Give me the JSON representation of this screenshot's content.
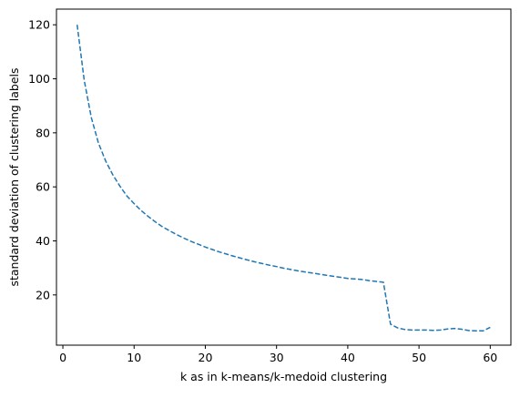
{
  "chart_data": {
    "type": "line",
    "title": "",
    "xlabel": "k as in k-means/k-medoid clustering",
    "ylabel": "standard deviation of clustering labels",
    "xlim": [
      -0.9,
      62.9
    ],
    "ylim": [
      1.4,
      125.8
    ],
    "xticks": [
      0,
      10,
      20,
      30,
      40,
      50,
      60
    ],
    "yticks": [
      20,
      40,
      60,
      80,
      100,
      120
    ],
    "grid": false,
    "line_style": "dashed",
    "colors": {
      "series": "#1f77b4",
      "axes": "#000000",
      "background": "#ffffff"
    },
    "series": [
      {
        "x": [
          2,
          3,
          4,
          5,
          6,
          7,
          8,
          9,
          10,
          11,
          12,
          13,
          14,
          15,
          16,
          17,
          18,
          19,
          20,
          21,
          22,
          23,
          24,
          25,
          26,
          27,
          28,
          29,
          30,
          31,
          32,
          33,
          34,
          35,
          36,
          37,
          38,
          39,
          40,
          41,
          42,
          43,
          44,
          45,
          46,
          47,
          48,
          49,
          50,
          51,
          52,
          53,
          54,
          55,
          56,
          57,
          58,
          59,
          60
        ],
        "values": [
          120.0,
          99.4,
          85.6,
          76.2,
          69.6,
          64.5,
          60.3,
          56.6,
          53.8,
          51.2,
          49.0,
          47.0,
          45.2,
          43.7,
          42.3,
          41.0,
          39.8,
          38.8,
          37.7,
          36.8,
          35.9,
          35.1,
          34.3,
          33.6,
          32.9,
          32.2,
          31.6,
          31.0,
          30.5,
          29.9,
          29.4,
          28.9,
          28.5,
          28.1,
          27.7,
          27.3,
          26.9,
          26.5,
          26.1,
          25.9,
          25.7,
          25.3,
          25.0,
          24.7,
          9.2,
          7.8,
          7.2,
          7.0,
          7.0,
          7.0,
          6.9,
          7.0,
          7.4,
          7.6,
          7.3,
          6.8,
          6.7,
          6.7,
          8.0
        ]
      }
    ]
  }
}
